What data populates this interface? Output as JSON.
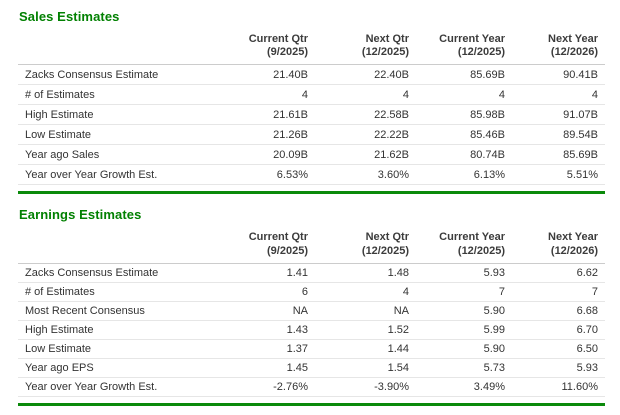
{
  "accent": {
    "title_green": "#028102",
    "rule_green": "#0b8a0b",
    "row_border": "#e6e6e6",
    "header_border": "#cccccc",
    "text": "#333333"
  },
  "sales": {
    "title": "Sales Estimates",
    "columns": [
      {
        "line1": "Current Qtr",
        "line2": "(9/2025)"
      },
      {
        "line1": "Next Qtr",
        "line2": "(12/2025)"
      },
      {
        "line1": "Current Year",
        "line2": "(12/2025)"
      },
      {
        "line1": "Next Year",
        "line2": "(12/2026)"
      }
    ],
    "rows": [
      {
        "label": "Zacks Consensus Estimate",
        "values": [
          "21.40B",
          "22.40B",
          "85.69B",
          "90.41B"
        ]
      },
      {
        "label": "# of Estimates",
        "values": [
          "4",
          "4",
          "4",
          "4"
        ]
      },
      {
        "label": "High Estimate",
        "values": [
          "21.61B",
          "22.58B",
          "85.98B",
          "91.07B"
        ]
      },
      {
        "label": "Low Estimate",
        "values": [
          "21.26B",
          "22.22B",
          "85.46B",
          "89.54B"
        ]
      },
      {
        "label": "Year ago Sales",
        "values": [
          "20.09B",
          "21.62B",
          "80.74B",
          "85.69B"
        ]
      },
      {
        "label": "Year over Year Growth Est.",
        "values": [
          "6.53%",
          "3.60%",
          "6.13%",
          "5.51%"
        ]
      }
    ]
  },
  "earnings": {
    "title": "Earnings Estimates",
    "columns": [
      {
        "line1": "Current Qtr",
        "line2": "(9/2025)"
      },
      {
        "line1": "Next Qtr",
        "line2": "(12/2025)"
      },
      {
        "line1": "Current Year",
        "line2": "(12/2025)"
      },
      {
        "line1": "Next Year",
        "line2": "(12/2026)"
      }
    ],
    "rows": [
      {
        "label": "Zacks Consensus Estimate",
        "values": [
          "1.41",
          "1.48",
          "5.93",
          "6.62"
        ]
      },
      {
        "label": "# of Estimates",
        "values": [
          "6",
          "4",
          "7",
          "7"
        ]
      },
      {
        "label": "Most Recent Consensus",
        "values": [
          "NA",
          "NA",
          "5.90",
          "6.68"
        ]
      },
      {
        "label": "High Estimate",
        "values": [
          "1.43",
          "1.52",
          "5.99",
          "6.70"
        ]
      },
      {
        "label": "Low Estimate",
        "values": [
          "1.37",
          "1.44",
          "5.90",
          "6.50"
        ]
      },
      {
        "label": "Year ago EPS",
        "values": [
          "1.45",
          "1.54",
          "5.73",
          "5.93"
        ]
      },
      {
        "label": "Year over Year Growth Est.",
        "values": [
          "-2.76%",
          "-3.90%",
          "3.49%",
          "11.60%"
        ]
      }
    ]
  }
}
